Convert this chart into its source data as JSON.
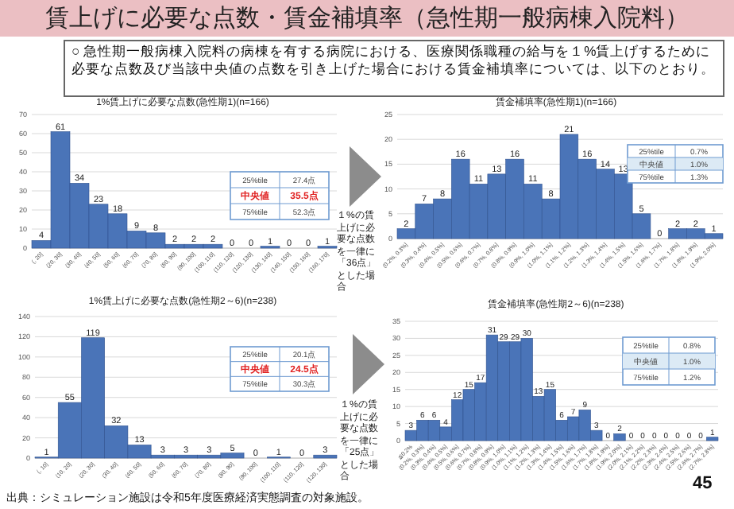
{
  "chart_data": [
    {
      "type": "other",
      "title": "賃上げに必要な点数・賃金補填率（急性期一般病棟入院料）",
      "subtitle": "○ 急性期一般病棟入院料の病棟を有する病院における、医療関係職種の給与を１%賃上げするために必要な点数及び当該中央値の点数を引き上げた場合における賃金補填率については、以下のとおり。",
      "annotations": [
        "１%の賃上げに必要な点数を一律に「36点」とした場合",
        "１%の賃上げに必要な点数を一律に「25点」とした場合",
        "出典：シミュレーション施設は令和5年度医療経済実態調査の対象施設。",
        "45"
      ]
    },
    {
      "type": "bar",
      "title": "1%賃上げに必要な点数(急性期1)(n=166)",
      "categories": [
        "(, 20]",
        "(20, 30]",
        "(30, 40]",
        "(40, 50]",
        "(50, 60]",
        "(60, 70]",
        "(70, 80]",
        "(80, 90]",
        "(90, 100]",
        "(100, 110]",
        "(110, 120]",
        "(120, 130]",
        "(130, 140]",
        "(140, 150]",
        "(150, 160]",
        "(160, 170]"
      ],
      "values": [
        4,
        61,
        34,
        23,
        18,
        9,
        8,
        2,
        2,
        2,
        0,
        0,
        1,
        0,
        0,
        1
      ],
      "color": "#4a74b8",
      "ylim": [
        0,
        70
      ],
      "yticks": [
        0,
        10,
        20,
        30,
        40,
        50,
        60,
        70
      ],
      "grid": "y",
      "data_labels": true,
      "annotations": [
        "25%tile",
        "27.4点",
        "中央値",
        "35.5点",
        "75%tile",
        "52.3点"
      ]
    },
    {
      "type": "bar",
      "title": "賃金補填率(急性期1)(n=166)",
      "categories": [
        "(0.2%, 0.3%]",
        "(0.3%, 0.4%]",
        "(0.4%, 0.5%]",
        "(0.5%, 0.6%]",
        "(0.6%, 0.7%]",
        "(0.7%, 0.8%]",
        "(0.8%, 0.9%]",
        "(0.9%, 1.0%]",
        "(1.0%, 1.1%]",
        "(1.1%, 1.2%]",
        "(1.2%, 1.3%]",
        "(1.3%, 1.4%]",
        "(1.4%, 1.5%]",
        "(1.5%, 1.6%]",
        "(1.6%, 1.7%]",
        "(1.7%, 1.8%]",
        "(1.8%, 1.9%]",
        "(1.9%, 2.0%]"
      ],
      "values": [
        2,
        7,
        8,
        16,
        11,
        13,
        16,
        11,
        8,
        21,
        16,
        14,
        13,
        5,
        0,
        2,
        2,
        1
      ],
      "color": "#4a74b8",
      "ylim": [
        0,
        25
      ],
      "yticks": [
        0,
        5,
        10,
        15,
        20,
        25
      ],
      "grid": "y",
      "data_labels": true,
      "annotations": [
        "25%tile",
        "0.7%",
        "中央値",
        "1.0%",
        "75%tile",
        "1.3%"
      ]
    },
    {
      "type": "bar",
      "title": "1%賃上げに必要な点数(急性期2～6)(n=238)",
      "categories": [
        "(, 10]",
        "(10, 20]",
        "(20, 30]",
        "(30, 40]",
        "(40, 50]",
        "(50, 60]",
        "(60, 70]",
        "(70, 80]",
        "(80, 90]",
        "(90, 100]",
        "(100, 110]",
        "(110, 120]",
        "(120, 130]"
      ],
      "values": [
        1,
        55,
        119,
        32,
        13,
        3,
        3,
        3,
        5,
        0,
        1,
        0,
        3
      ],
      "color": "#4a74b8",
      "ylim": [
        0,
        140
      ],
      "yticks": [
        0,
        20,
        40,
        60,
        80,
        100,
        120,
        140
      ],
      "grid": "y",
      "data_labels": true,
      "annotations": [
        "25%tile",
        "20.1点",
        "中央値",
        "24.5点",
        "75%tile",
        "30.3点"
      ]
    },
    {
      "type": "bar",
      "title": "賃金補填率(急性期2～6)(n=238)",
      "categories": [
        "≦0.2%",
        "(0.2%, 0.3%]",
        "(0.3%, 0.4%]",
        "(0.4%, 0.5%]",
        "(0.5%, 0.6%]",
        "(0.6%, 0.7%]",
        "(0.7%, 0.8%]",
        "(0.8%, 0.9%]",
        "(0.9%, 1.0%]",
        "(1.0%, 1.1%]",
        "(1.1%, 1.2%]",
        "(1.2%, 1.3%]",
        "(1.3%, 1.4%]",
        "(1.4%, 1.5%]",
        "(1.5%, 1.6%]",
        "(1.6%, 1.7%]",
        "(1.7%, 1.8%]",
        "(1.8%, 1.9%]",
        "(1.9%, 2.0%]",
        "(2.0%, 2.1%]",
        "(2.1%, 2.2%]",
        "(2.2%, 2.3%]",
        "(2.3%, 2.4%]",
        "(2.4%, 2.5%]",
        "(2.5%, 2.6%]",
        "(2.6%, 2.7%]",
        "(2.7%, 2.8%]"
      ],
      "values": [
        3,
        6,
        6,
        4,
        12,
        15,
        17,
        31,
        29,
        29,
        30,
        13,
        15,
        6,
        7,
        9,
        3,
        0,
        2,
        0,
        0,
        0,
        0,
        0,
        0,
        0,
        1
      ],
      "color": "#4a74b8",
      "ylim": [
        0,
        35
      ],
      "yticks": [
        0,
        5,
        10,
        15,
        20,
        25,
        30,
        35
      ],
      "grid": "y",
      "data_labels": true,
      "annotations": [
        "25%tile",
        "0.8%",
        "中央値",
        "1.0%",
        "75%tile",
        "1.2%"
      ]
    }
  ]
}
